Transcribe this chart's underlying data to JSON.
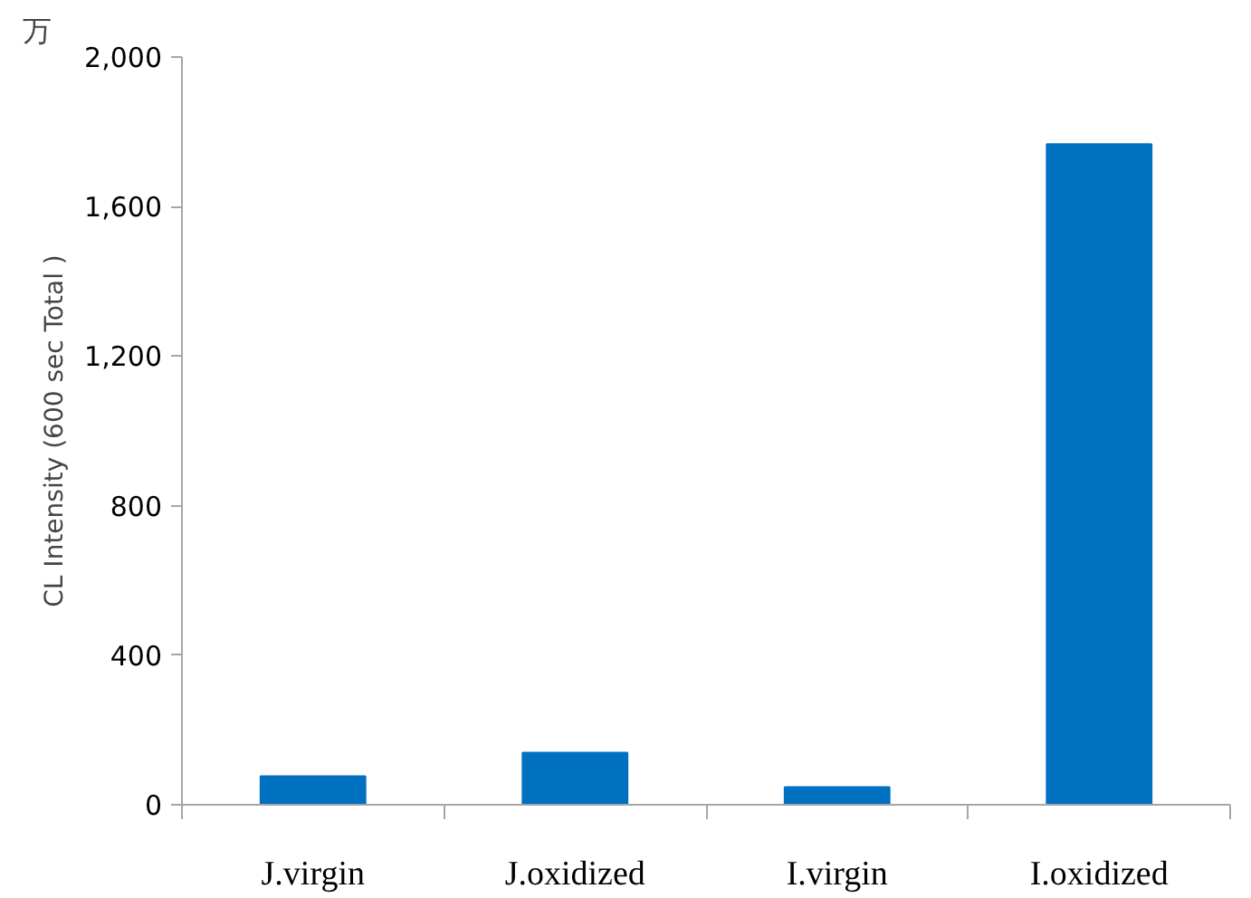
{
  "chart_data": {
    "type": "bar",
    "ylabel": "CL Intensity (600 sec Total )",
    "annotations": [
      "万"
    ],
    "categories": [
      "J.virgin",
      "J.oxidized",
      "I.virgin",
      "I.oxidized"
    ],
    "values": [
      76,
      139,
      47,
      1767
    ],
    "color": "#0070c0",
    "ylim": [
      0,
      2000
    ],
    "yticks": [
      {
        "value": 0,
        "label": "0"
      },
      {
        "value": 400,
        "label": "400"
      },
      {
        "value": 800,
        "label": "800"
      },
      {
        "value": 1200,
        "label": "1,200"
      },
      {
        "value": 1600,
        "label": "1,600"
      },
      {
        "value": 2000,
        "label": "2,000"
      }
    ],
    "grid": false
  }
}
